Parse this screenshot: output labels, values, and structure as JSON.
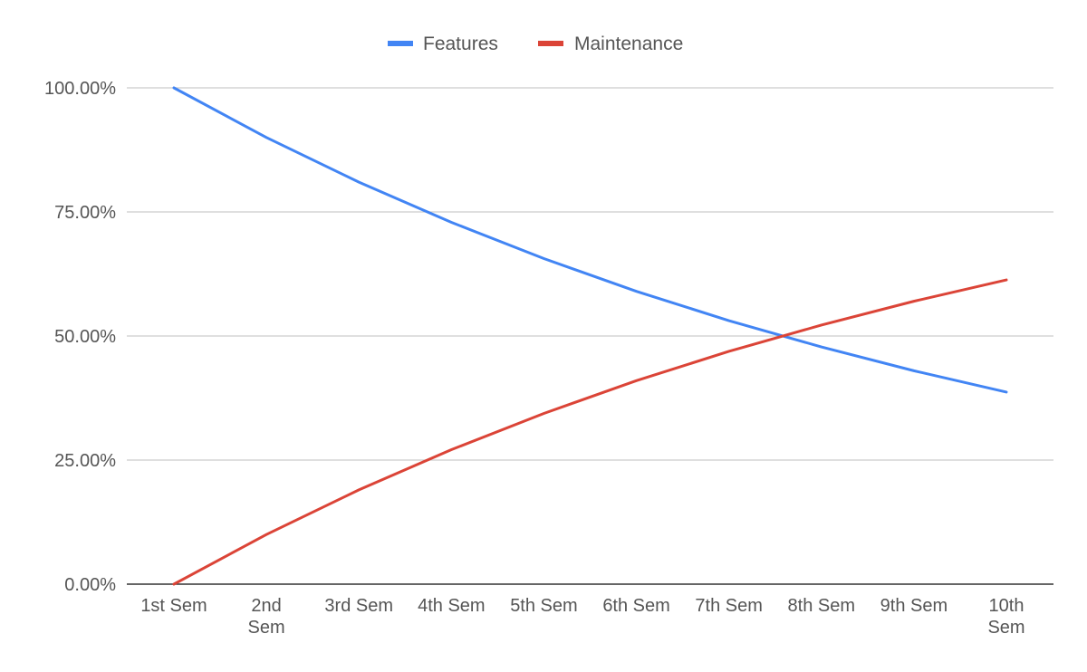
{
  "chart_data": {
    "type": "line",
    "title": "",
    "xlabel": "",
    "ylabel": "",
    "categories": [
      [
        "1st Sem"
      ],
      [
        "2nd",
        "Sem"
      ],
      [
        "3rd Sem"
      ],
      [
        "4th Sem"
      ],
      [
        "5th Sem"
      ],
      [
        "6th Sem"
      ],
      [
        "7th Sem"
      ],
      [
        "8th Sem"
      ],
      [
        "9th Sem"
      ],
      [
        "10th",
        "Sem"
      ]
    ],
    "ylim": [
      0,
      100
    ],
    "yticks": [
      0,
      25,
      50,
      75,
      100
    ],
    "ytick_labels": [
      "0.00%",
      "25.00%",
      "50.00%",
      "75.00%",
      "100.00%"
    ],
    "grid": true,
    "legend_position": "top-center",
    "series": [
      {
        "name": "Features",
        "color": "#4285f4",
        "values": [
          100,
          90,
          81,
          72.9,
          65.6,
          59,
          53.1,
          47.8,
          43,
          38.7
        ]
      },
      {
        "name": "Maintenance",
        "color": "#db4437",
        "values": [
          0,
          10,
          19,
          27.1,
          34.4,
          41,
          46.9,
          52.2,
          57,
          61.3
        ]
      }
    ]
  }
}
